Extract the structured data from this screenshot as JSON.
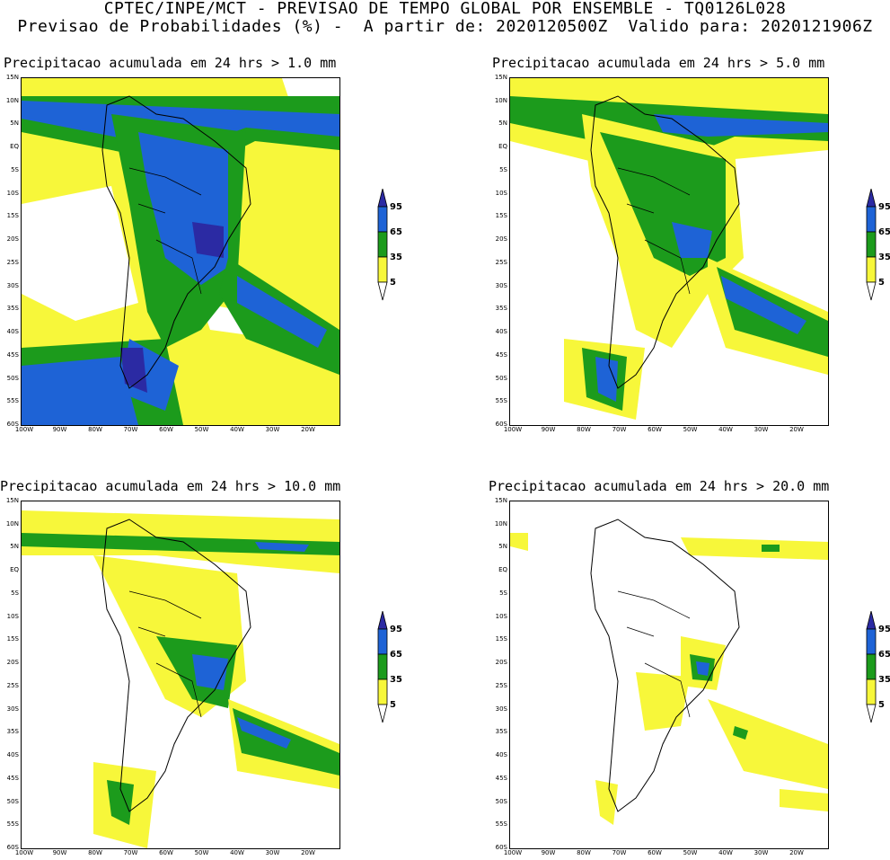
{
  "header": {
    "line1": "CPTEC/INPE/MCT - PREVISAO DE TEMPO GLOBAL POR ENSEMBLE - TQ0126L028",
    "line2": "Previsao de Probabilidades (%) -  A partir de: 2020120500Z  Valido para: 2020121906Z"
  },
  "axes": {
    "lat_labels": [
      "15N",
      "10N",
      "5N",
      "EQ",
      "5S",
      "10S",
      "15S",
      "20S",
      "25S",
      "30S",
      "35S",
      "40S",
      "45S",
      "50S",
      "55S",
      "60S"
    ],
    "lon_labels": [
      "100W",
      "90W",
      "80W",
      "70W",
      "60W",
      "50W",
      "40W",
      "30W",
      "20W"
    ]
  },
  "legend": {
    "levels": [
      "95",
      "65",
      "35",
      "5"
    ],
    "colors": [
      "#2b2aa3",
      "#1e63d6",
      "#1c9b1c",
      "#f7f73a",
      "#ffffff"
    ]
  },
  "panels": [
    {
      "title": "Precipitacao acumulada em 24 hrs > 1.0 mm",
      "threshold_mm": 1.0
    },
    {
      "title": "Precipitacao acumulada em 24 hrs > 5.0 mm",
      "threshold_mm": 5.0
    },
    {
      "title": "Precipitacao acumulada em 24 hrs > 10.0 mm",
      "threshold_mm": 10.0
    },
    {
      "title": "Precipitacao acumulada em 24 hrs > 20.0 mm",
      "threshold_mm": 20.0
    }
  ]
}
